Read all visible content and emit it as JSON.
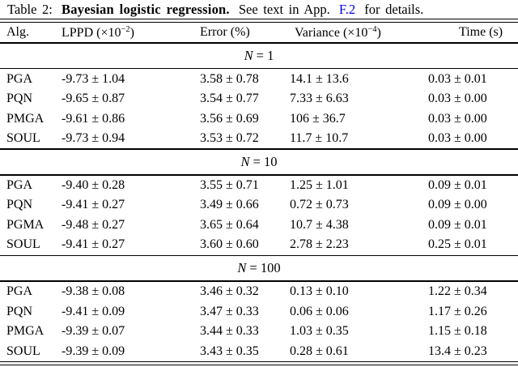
{
  "caption": {
    "label": "Table 2:",
    "title": "Bayesian logistic regression.",
    "text_before_link": "See text in App.",
    "link": "F.2",
    "text_after_link": "for details."
  },
  "colors": {
    "link": "#0000ee",
    "text": "#000000",
    "rule": "#000000"
  },
  "table": {
    "columns": [
      {
        "key": "alg",
        "pre": "Alg.",
        "sup": "",
        "post": ""
      },
      {
        "key": "lppd",
        "pre": "LPPD (×10",
        "sup": "−2",
        "post": ")"
      },
      {
        "key": "error",
        "pre": "Error (%)",
        "sup": "",
        "post": ""
      },
      {
        "key": "variance",
        "pre": "Variance (×10",
        "sup": "−4",
        "post": ")"
      },
      {
        "key": "time",
        "pre": "Time (s)",
        "sup": "",
        "post": ""
      }
    ],
    "sections": [
      {
        "var": "N",
        "rest": "= 1",
        "rows": [
          [
            "PGA",
            "-9.73 ± 1.04",
            "3.58 ± 0.78",
            "14.1 ± 13.6",
            "0.03 ± 0.01"
          ],
          [
            "PQN",
            "-9.65 ± 0.87",
            "3.54 ± 0.77",
            "7.33 ± 6.63",
            "0.03 ± 0.00"
          ],
          [
            "PMGA",
            "-9.61 ± 0.86",
            "3.56 ± 0.69",
            "106 ± 36.7",
            "0.03 ± 0.00"
          ],
          [
            "SOUL",
            "-9.73 ± 0.94",
            "3.53 ± 0.72",
            "11.7 ± 10.7",
            "0.03 ± 0.00"
          ]
        ]
      },
      {
        "var": "N",
        "rest": "= 10",
        "rows": [
          [
            "PGA",
            "-9.40 ± 0.28",
            "3.55 ± 0.71",
            "1.25 ± 1.01",
            "0.09 ± 0.01"
          ],
          [
            "PQN",
            "-9.41 ± 0.27",
            "3.49 ± 0.66",
            "0.72 ± 0.73",
            "0.09 ± 0.00"
          ],
          [
            "PGMA",
            "-9.48 ± 0.27",
            "3.65 ± 0.64",
            "10.7 ± 4.38",
            "0.09 ± 0.01"
          ],
          [
            "SOUL",
            "-9.41 ± 0.27",
            "3.60 ± 0.60",
            "2.78 ± 2.23",
            "0.25 ± 0.01"
          ]
        ]
      },
      {
        "var": "N",
        "rest": "= 100",
        "rows": [
          [
            "PGA",
            "-9.38 ± 0.08",
            "3.46 ± 0.32",
            "0.13 ± 0.10",
            "1.22 ± 0.34"
          ],
          [
            "PQN",
            "-9.41 ± 0.09",
            "3.47 ± 0.33",
            "0.06 ± 0.06",
            "1.17 ± 0.26"
          ],
          [
            "PMGA",
            "-9.39 ± 0.07",
            "3.44 ± 0.33",
            "1.03 ± 0.35",
            "1.15 ± 0.18"
          ],
          [
            "SOUL",
            "-9.39 ± 0.09",
            "3.43 ± 0.35",
            "0.28 ± 0.61",
            "13.4 ± 0.23"
          ]
        ]
      }
    ]
  }
}
